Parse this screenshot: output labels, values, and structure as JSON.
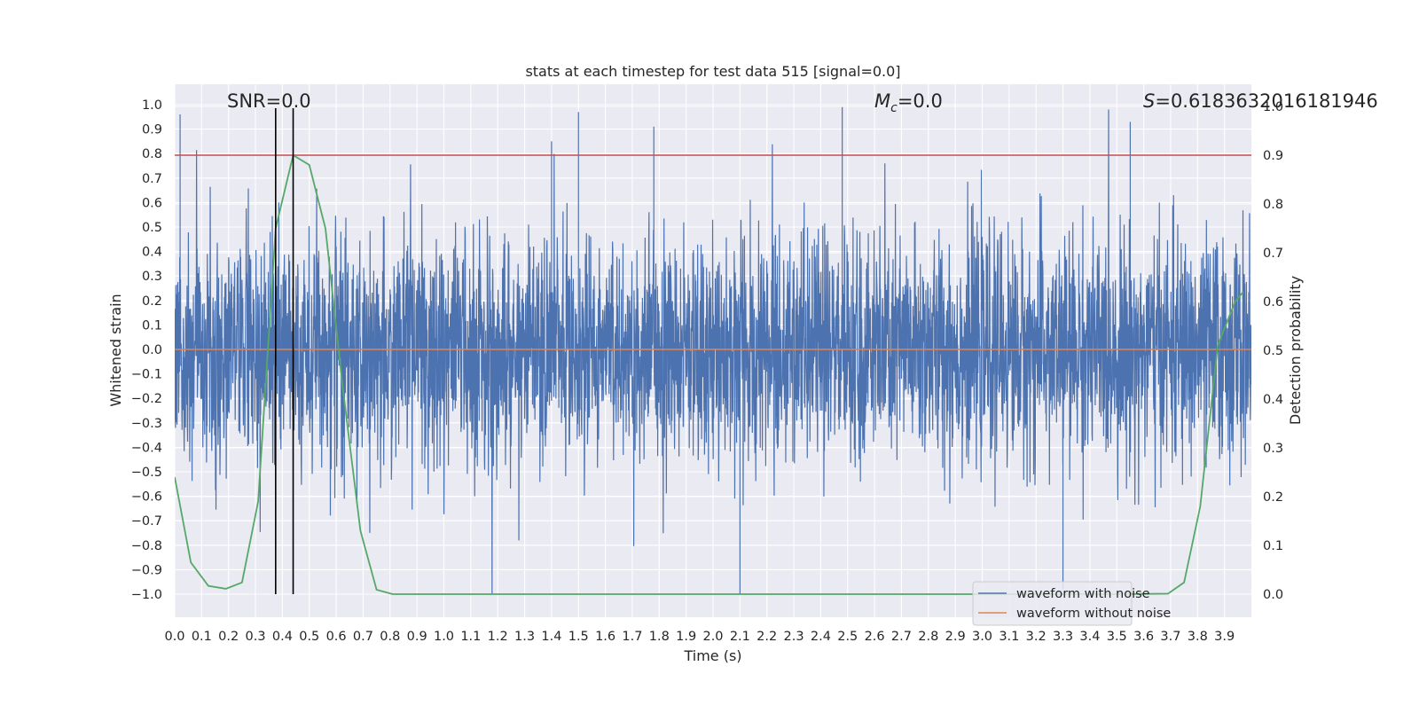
{
  "chart_data": {
    "type": "line",
    "title": "stats at each timestep for test data 515 [signal=0.0]",
    "xlabel": "Time (s)",
    "ylabel": "Whitened strain",
    "y2label": "Detection probability",
    "xlim": [
      0.0,
      4.0
    ],
    "ylim": [
      -1.1,
      1.1
    ],
    "y2lim": [
      -0.05,
      1.05
    ],
    "xticks": [
      "0.0",
      "0.1",
      "0.2",
      "0.3",
      "0.4",
      "0.5",
      "0.6",
      "0.7",
      "0.8",
      "0.9",
      "1.0",
      "1.1",
      "1.2",
      "1.3",
      "1.4",
      "1.5",
      "1.6",
      "1.7",
      "1.8",
      "1.9",
      "2.0",
      "2.1",
      "2.2",
      "2.3",
      "2.4",
      "2.5",
      "2.6",
      "2.7",
      "2.8",
      "2.9",
      "3.0",
      "3.1",
      "3.2",
      "3.3",
      "3.4",
      "3.5",
      "3.6",
      "3.7",
      "3.8",
      "3.9"
    ],
    "yticks": [
      "1.0",
      "0.9",
      "0.8",
      "0.7",
      "0.6",
      "0.5",
      "0.4",
      "0.3",
      "0.2",
      "0.1",
      "0.0",
      "−0.1",
      "−0.2",
      "−0.3",
      "−0.4",
      "−0.5",
      "−0.6",
      "−0.7",
      "−0.8",
      "−0.9",
      "−1.0"
    ],
    "y2ticks": [
      "1.0",
      "0.9",
      "0.8",
      "0.7",
      "0.6",
      "0.5",
      "0.4",
      "0.3",
      "0.2",
      "0.1",
      "0.0"
    ],
    "grid": true,
    "legend_position": "lower-right",
    "annotations": {
      "snr": "SNR=0.0",
      "mc_symbol": "M",
      "mc_sub": "c",
      "mc_value": "=0.0",
      "s_symbol": "S",
      "s_value": "=0.6183632016181946"
    },
    "series": [
      {
        "name": "waveform with noise",
        "axis": "left",
        "style": "dense noise",
        "color": "#4c72b0",
        "x_range": [
          0.0,
          4.0
        ],
        "approx_amplitude_range": [
          -1.0,
          0.98
        ],
        "notable_peaks": [
          [
            0.02,
            0.96
          ],
          [
            1.4,
            0.85
          ],
          [
            1.5,
            0.97
          ],
          [
            1.78,
            0.91
          ],
          [
            2.1,
            -1.0
          ],
          [
            2.48,
            0.99
          ],
          [
            3.55,
            0.93
          ],
          [
            3.3,
            -0.98
          ]
        ]
      },
      {
        "name": "waveform without noise",
        "axis": "left",
        "color": "#dd8452",
        "x": [
          0.0,
          4.0
        ],
        "y": [
          0.0,
          0.0
        ]
      },
      {
        "axis": "right",
        "color": "#55a868",
        "x": [
          0.0,
          0.06,
          0.125,
          0.19,
          0.25,
          0.31,
          0.375,
          0.44,
          0.5,
          0.56,
          0.625,
          0.69,
          0.75,
          0.81,
          3.5,
          3.69,
          3.75,
          3.81,
          3.875,
          3.94,
          3.97
        ],
        "y": [
          0.24,
          0.065,
          0.017,
          0.011,
          0.024,
          0.19,
          0.75,
          0.9,
          0.88,
          0.75,
          0.42,
          0.13,
          0.009,
          0.0,
          0.0,
          0.001,
          0.024,
          0.18,
          0.51,
          0.6,
          0.62
        ]
      },
      {
        "axis": "right",
        "style": "horizontal threshold",
        "color": "#c44e52",
        "y": 0.9
      }
    ],
    "vertical_markers": [
      0.375,
      0.44
    ]
  }
}
